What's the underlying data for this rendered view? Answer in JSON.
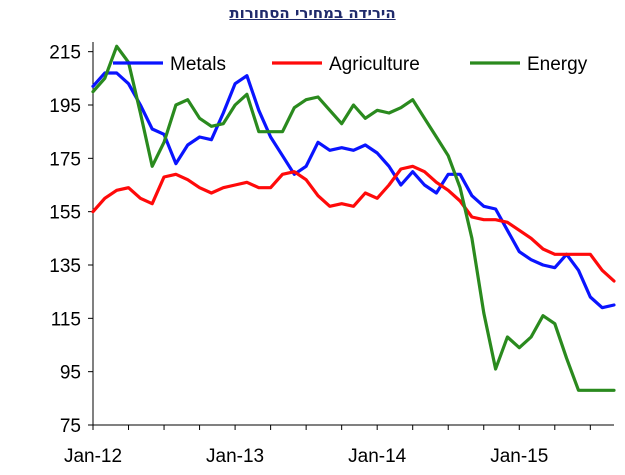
{
  "chart_data": {
    "type": "line",
    "title": "הירידה במחירי הסחורות",
    "xlabel": "",
    "ylabel": "",
    "x_tick_labels": [
      "Jan-12",
      "Jan-13",
      "Jan-14",
      "Jan-15"
    ],
    "x_start": "Jan-12",
    "x_end": "Aug-15",
    "y_ticks": [
      75,
      95,
      115,
      135,
      155,
      175,
      195,
      215
    ],
    "ylim": [
      75,
      225
    ],
    "legend_position": "top",
    "grid": false,
    "series": [
      {
        "name": "Metals",
        "color": "#0a14ff",
        "values": [
          202,
          207,
          207,
          203,
          195,
          186,
          184,
          173,
          180,
          183,
          182,
          192,
          203,
          206,
          193,
          183,
          176,
          169,
          172,
          181,
          178,
          179,
          178,
          180,
          177,
          172,
          165,
          170,
          165,
          162,
          169,
          169,
          161,
          157,
          156,
          148,
          140,
          137,
          135,
          134,
          139,
          133,
          123,
          119,
          120
        ]
      },
      {
        "name": "Agriculture",
        "color": "#ff0a0a",
        "values": [
          155,
          160,
          163,
          164,
          160,
          158,
          168,
          169,
          167,
          164,
          162,
          164,
          165,
          166,
          164,
          164,
          169,
          170,
          167,
          161,
          157,
          158,
          157,
          162,
          160,
          165,
          171,
          172,
          170,
          166,
          163,
          159,
          153,
          152,
          152,
          151,
          148,
          145,
          141,
          139,
          139,
          139,
          139,
          133,
          129
        ]
      },
      {
        "name": "Energy",
        "color": "#2a8a1e",
        "values": [
          200,
          205,
          217,
          211,
          192,
          172,
          181,
          195,
          197,
          190,
          187,
          188,
          195,
          199,
          185,
          185,
          185,
          194,
          197,
          198,
          193,
          188,
          195,
          190,
          193,
          192,
          194,
          197,
          190,
          183,
          176,
          164,
          145,
          117,
          96,
          108,
          104,
          108,
          116,
          113,
          100,
          88,
          88,
          88,
          88
        ]
      }
    ]
  }
}
